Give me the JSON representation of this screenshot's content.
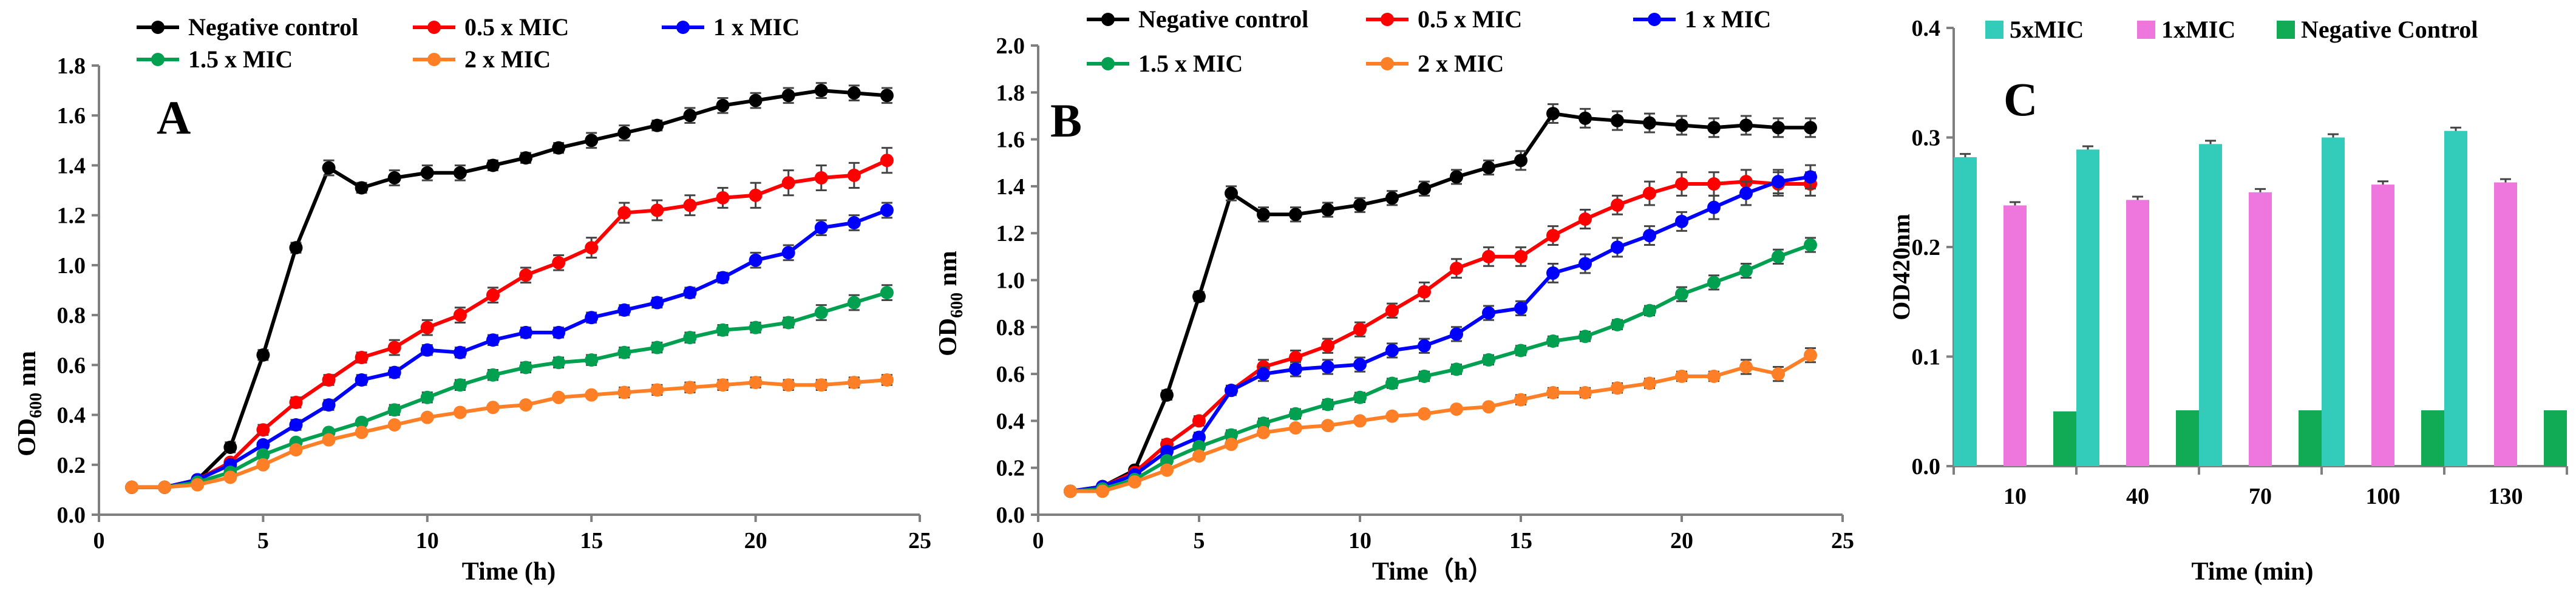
{
  "figure": {
    "panels": [
      "A",
      "B",
      "C"
    ]
  },
  "chart_data": [
    {
      "type": "line",
      "panel_label": "A",
      "title": "",
      "xlabel": "Time (h)",
      "ylabel_main": "OD",
      "ylabel_sub": "600",
      "ylabel_unit": " nm",
      "xlim": [
        0,
        25
      ],
      "ylim": [
        0,
        1.8
      ],
      "xticks": [
        0,
        5,
        10,
        15,
        20,
        25
      ],
      "yticks": [
        0.0,
        0.2,
        0.4,
        0.6,
        0.8,
        1.0,
        1.2,
        1.4,
        1.6,
        1.8
      ],
      "ytick_labels": [
        "0.0",
        "0.2",
        "0.4",
        "0.6",
        "0.8",
        "1.0",
        "1.2",
        "1.4",
        "1.6",
        "1.8"
      ],
      "xtick_labels": [
        "0",
        "5",
        "10",
        "15",
        "20",
        "25"
      ],
      "x": [
        1,
        2,
        3,
        4,
        5,
        6,
        7,
        8,
        9,
        10,
        11,
        12,
        13,
        14,
        15,
        16,
        17,
        18,
        19,
        20,
        21,
        22,
        23,
        24
      ],
      "series": [
        {
          "name": "Negative control",
          "color": "#000000",
          "values": [
            0.11,
            0.11,
            0.14,
            0.27,
            0.64,
            1.07,
            1.39,
            1.31,
            1.35,
            1.37,
            1.37,
            1.4,
            1.43,
            1.47,
            1.5,
            1.53,
            1.56,
            1.6,
            1.64,
            1.66,
            1.68,
            1.7,
            1.69,
            1.68
          ],
          "errors": [
            0.01,
            0.01,
            0.01,
            0.02,
            0.02,
            0.02,
            0.03,
            0.02,
            0.03,
            0.03,
            0.03,
            0.02,
            0.02,
            0.02,
            0.03,
            0.03,
            0.02,
            0.03,
            0.03,
            0.03,
            0.03,
            0.03,
            0.03,
            0.03
          ]
        },
        {
          "name": "0.5 x MIC",
          "color": "#ff0000",
          "values": [
            0.11,
            0.11,
            0.14,
            0.21,
            0.34,
            0.45,
            0.54,
            0.63,
            0.67,
            0.75,
            0.8,
            0.88,
            0.96,
            1.01,
            1.07,
            1.21,
            1.22,
            1.24,
            1.27,
            1.28,
            1.33,
            1.35,
            1.36,
            1.42
          ],
          "errors": [
            0.01,
            0.01,
            0.01,
            0.01,
            0.02,
            0.02,
            0.02,
            0.02,
            0.03,
            0.03,
            0.03,
            0.03,
            0.03,
            0.03,
            0.04,
            0.04,
            0.04,
            0.04,
            0.04,
            0.05,
            0.05,
            0.05,
            0.05,
            0.05
          ]
        },
        {
          "name": "1 x MIC",
          "color": "#0000ff",
          "values": [
            0.11,
            0.11,
            0.14,
            0.2,
            0.28,
            0.36,
            0.44,
            0.54,
            0.57,
            0.66,
            0.65,
            0.7,
            0.73,
            0.73,
            0.79,
            0.82,
            0.85,
            0.89,
            0.95,
            1.02,
            1.05,
            1.15,
            1.17,
            1.22
          ],
          "errors": [
            0.01,
            0.01,
            0.01,
            0.01,
            0.01,
            0.02,
            0.02,
            0.02,
            0.02,
            0.02,
            0.02,
            0.02,
            0.02,
            0.02,
            0.02,
            0.02,
            0.02,
            0.02,
            0.02,
            0.03,
            0.03,
            0.03,
            0.03,
            0.03
          ]
        },
        {
          "name": "1.5 x MIC",
          "color": "#00a050",
          "values": [
            0.11,
            0.11,
            0.13,
            0.17,
            0.24,
            0.29,
            0.33,
            0.37,
            0.42,
            0.47,
            0.52,
            0.56,
            0.59,
            0.61,
            0.62,
            0.65,
            0.67,
            0.71,
            0.74,
            0.75,
            0.77,
            0.81,
            0.85,
            0.89
          ],
          "errors": [
            0.01,
            0.01,
            0.01,
            0.01,
            0.01,
            0.01,
            0.01,
            0.01,
            0.02,
            0.02,
            0.02,
            0.02,
            0.02,
            0.02,
            0.02,
            0.02,
            0.02,
            0.02,
            0.02,
            0.02,
            0.02,
            0.03,
            0.03,
            0.03
          ]
        },
        {
          "name": "2 x MIC",
          "color": "#ff7f27",
          "values": [
            0.11,
            0.11,
            0.12,
            0.15,
            0.2,
            0.26,
            0.3,
            0.33,
            0.36,
            0.39,
            0.41,
            0.43,
            0.44,
            0.47,
            0.48,
            0.49,
            0.5,
            0.51,
            0.52,
            0.53,
            0.52,
            0.52,
            0.53,
            0.54
          ],
          "errors": [
            0.01,
            0.01,
            0.01,
            0.01,
            0.01,
            0.01,
            0.01,
            0.01,
            0.01,
            0.01,
            0.01,
            0.01,
            0.01,
            0.01,
            0.01,
            0.02,
            0.02,
            0.02,
            0.02,
            0.02,
            0.02,
            0.02,
            0.02,
            0.02
          ]
        }
      ]
    },
    {
      "type": "line",
      "panel_label": "B",
      "title": "",
      "xlabel": "Time（h）",
      "ylabel_main": "OD",
      "ylabel_sub": "600",
      "ylabel_unit": " nm",
      "xlim": [
        0,
        25
      ],
      "ylim": [
        0,
        2.0
      ],
      "xticks": [
        0,
        5,
        10,
        15,
        20,
        25
      ],
      "yticks": [
        0.0,
        0.2,
        0.4,
        0.6,
        0.8,
        1.0,
        1.2,
        1.4,
        1.6,
        1.8,
        2.0
      ],
      "ytick_labels": [
        "0.0",
        "0.2",
        "0.4",
        "0.6",
        "0.8",
        "1.0",
        "1.2",
        "1.4",
        "1.6",
        "1.8",
        "2.0"
      ],
      "xtick_labels": [
        "0",
        "5",
        "10",
        "15",
        "20",
        "25"
      ],
      "x": [
        1,
        2,
        3,
        4,
        5,
        6,
        7,
        8,
        9,
        10,
        11,
        12,
        13,
        14,
        15,
        16,
        17,
        18,
        19,
        20,
        21,
        22,
        23,
        24
      ],
      "series": [
        {
          "name": "Negative control",
          "color": "#000000",
          "values": [
            0.1,
            0.12,
            0.19,
            0.51,
            0.93,
            1.37,
            1.28,
            1.28,
            1.3,
            1.32,
            1.35,
            1.39,
            1.44,
            1.48,
            1.51,
            1.71,
            1.69,
            1.68,
            1.67,
            1.66,
            1.65,
            1.66,
            1.65,
            1.65
          ],
          "errors": [
            0.01,
            0.01,
            0.01,
            0.02,
            0.02,
            0.03,
            0.03,
            0.03,
            0.03,
            0.03,
            0.03,
            0.03,
            0.03,
            0.03,
            0.04,
            0.04,
            0.04,
            0.04,
            0.04,
            0.04,
            0.04,
            0.04,
            0.04,
            0.04
          ]
        },
        {
          "name": "0.5 x MIC",
          "color": "#ff0000",
          "values": [
            0.1,
            0.12,
            0.18,
            0.3,
            0.4,
            0.53,
            0.63,
            0.67,
            0.72,
            0.79,
            0.87,
            0.95,
            1.05,
            1.1,
            1.1,
            1.19,
            1.26,
            1.32,
            1.37,
            1.41,
            1.41,
            1.42,
            1.41,
            1.41
          ],
          "errors": [
            0.01,
            0.01,
            0.01,
            0.02,
            0.02,
            0.02,
            0.03,
            0.03,
            0.03,
            0.03,
            0.03,
            0.04,
            0.04,
            0.04,
            0.04,
            0.04,
            0.04,
            0.04,
            0.05,
            0.05,
            0.05,
            0.05,
            0.05,
            0.05
          ]
        },
        {
          "name": "1 x MIC",
          "color": "#0000ff",
          "values": [
            0.1,
            0.12,
            0.17,
            0.27,
            0.33,
            0.53,
            0.6,
            0.62,
            0.63,
            0.64,
            0.7,
            0.72,
            0.77,
            0.86,
            0.88,
            1.03,
            1.07,
            1.14,
            1.19,
            1.25,
            1.31,
            1.37,
            1.42,
            1.44
          ],
          "errors": [
            0.01,
            0.01,
            0.01,
            0.02,
            0.02,
            0.02,
            0.03,
            0.03,
            0.03,
            0.03,
            0.03,
            0.03,
            0.03,
            0.03,
            0.03,
            0.04,
            0.04,
            0.04,
            0.04,
            0.04,
            0.05,
            0.05,
            0.05,
            0.05
          ]
        },
        {
          "name": "1.5 x MIC",
          "color": "#00a050",
          "values": [
            0.1,
            0.11,
            0.15,
            0.23,
            0.29,
            0.34,
            0.39,
            0.43,
            0.47,
            0.5,
            0.56,
            0.59,
            0.62,
            0.66,
            0.7,
            0.74,
            0.76,
            0.81,
            0.87,
            0.94,
            0.99,
            1.04,
            1.1,
            1.15
          ],
          "errors": [
            0.01,
            0.01,
            0.01,
            0.01,
            0.01,
            0.02,
            0.02,
            0.02,
            0.02,
            0.02,
            0.02,
            0.02,
            0.02,
            0.02,
            0.02,
            0.02,
            0.02,
            0.02,
            0.02,
            0.03,
            0.03,
            0.03,
            0.03,
            0.03
          ]
        },
        {
          "name": "2 x MIC",
          "color": "#ff7f27",
          "values": [
            0.1,
            0.1,
            0.14,
            0.19,
            0.25,
            0.3,
            0.35,
            0.37,
            0.38,
            0.4,
            0.42,
            0.43,
            0.45,
            0.46,
            0.49,
            0.52,
            0.52,
            0.54,
            0.56,
            0.59,
            0.59,
            0.63,
            0.6,
            0.68
          ],
          "errors": [
            0.01,
            0.01,
            0.01,
            0.01,
            0.01,
            0.01,
            0.01,
            0.01,
            0.01,
            0.01,
            0.01,
            0.01,
            0.01,
            0.01,
            0.02,
            0.02,
            0.02,
            0.02,
            0.02,
            0.02,
            0.02,
            0.03,
            0.03,
            0.03
          ]
        }
      ]
    },
    {
      "type": "bar",
      "panel_label": "C",
      "title": "",
      "xlabel": "Time (min)",
      "ylabel": "OD420nm",
      "ylim": [
        0,
        0.4
      ],
      "yticks": [
        0.0,
        0.1,
        0.2,
        0.3,
        0.4
      ],
      "ytick_labels": [
        "0.0",
        "0.1",
        "0.2",
        "0.3",
        "0.4"
      ],
      "categories": [
        "10",
        "40",
        "70",
        "100",
        "130"
      ],
      "series": [
        {
          "name": "5xMIC",
          "color": "#33ccbb",
          "values": [
            0.282,
            0.289,
            0.294,
            0.3,
            0.306
          ],
          "errors": [
            0.003,
            0.003,
            0.003,
            0.003,
            0.003
          ]
        },
        {
          "name": "1xMIC",
          "color": "#ee77dd",
          "values": [
            0.238,
            0.243,
            0.25,
            0.257,
            0.259
          ],
          "errors": [
            0.003,
            0.003,
            0.003,
            0.003,
            0.003
          ]
        },
        {
          "name": "Negative Control",
          "color": "#11aa55",
          "values": [
            0.05,
            0.051,
            0.051,
            0.051,
            0.051
          ],
          "errors": [
            0.0,
            0.0,
            0.0,
            0.0,
            0.0
          ]
        }
      ]
    }
  ]
}
